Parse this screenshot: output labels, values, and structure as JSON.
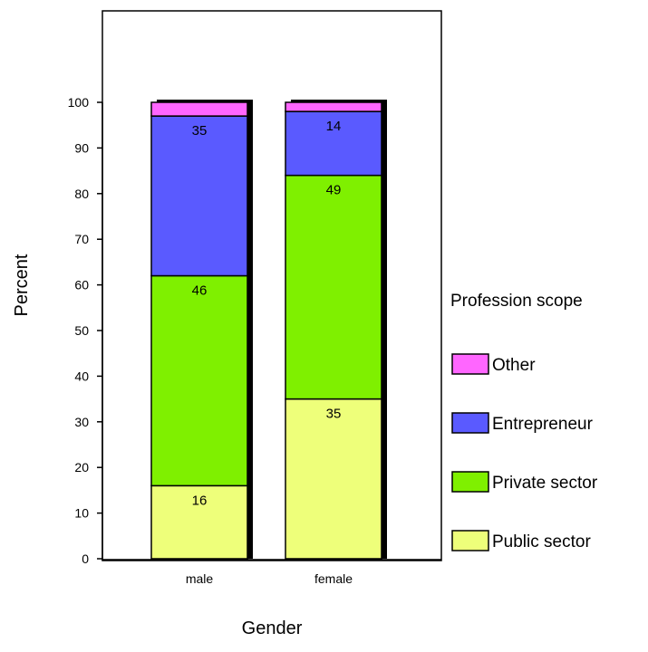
{
  "chart_data": {
    "type": "bar",
    "stacked": true,
    "xlabel": "Gender",
    "ylabel": "Percent",
    "ylim": [
      0,
      100
    ],
    "yticks": [
      0,
      10,
      20,
      30,
      40,
      50,
      60,
      70,
      80,
      90,
      100
    ],
    "categories": [
      "male",
      "female"
    ],
    "series": [
      {
        "name": "Public sector",
        "color": "#eeff7a",
        "values": [
          16,
          35
        ]
      },
      {
        "name": "Private sector",
        "color": "#7ff000",
        "values": [
          46,
          49
        ]
      },
      {
        "name": "Entrepreneur",
        "color": "#5a5aff",
        "values": [
          35,
          14
        ]
      },
      {
        "name": "Other",
        "color": "#ff66ff",
        "values": [
          3,
          2
        ]
      }
    ],
    "data_labels": [
      {
        "series": "Public sector",
        "category": "male",
        "text": "16"
      },
      {
        "series": "Private sector",
        "category": "male",
        "text": "46"
      },
      {
        "series": "Entrepreneur",
        "category": "male",
        "text": "35"
      },
      {
        "series": "Public sector",
        "category": "female",
        "text": "35"
      },
      {
        "series": "Private sector",
        "category": "female",
        "text": "49"
      },
      {
        "series": "Entrepreneur",
        "category": "female",
        "text": "14"
      }
    ],
    "legend": {
      "title": "Profession scope",
      "placement": "right",
      "items": [
        "Other",
        "Entrepreneur",
        "Private sector",
        "Public sector"
      ]
    },
    "grid": false
  }
}
